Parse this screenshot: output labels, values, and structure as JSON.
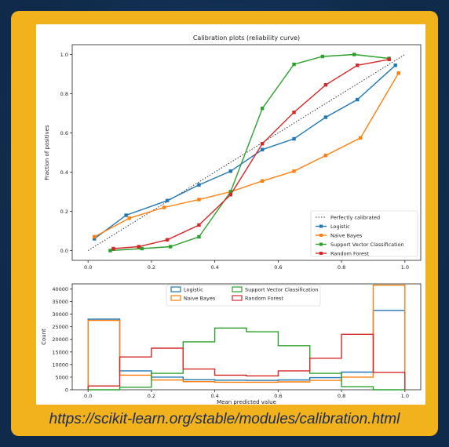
{
  "caption": "https://scikit-learn.org/stable/modules/calibration.html",
  "chart_data": [
    {
      "type": "line",
      "title": "Calibration plots  (reliability curve)",
      "xlabel": "",
      "ylabel": "Fraction of positives",
      "xlim": [
        -0.05,
        1.05
      ],
      "ylim": [
        -0.05,
        1.05
      ],
      "xticks": [
        "0.0",
        "0.2",
        "0.4",
        "0.6",
        "0.8",
        "1.0"
      ],
      "yticks": [
        "0.0",
        "0.2",
        "0.4",
        "0.6",
        "0.8",
        "1.0"
      ],
      "legend_position": "lower-right",
      "reference": {
        "name": "Perfectly calibrated",
        "x": [
          0,
          1
        ],
        "y": [
          0,
          1
        ],
        "color": "#333333"
      },
      "series": [
        {
          "name": "Logistic",
          "color": "#1f77b4",
          "x": [
            0.02,
            0.12,
            0.25,
            0.35,
            0.45,
            0.55,
            0.65,
            0.75,
            0.85,
            0.97
          ],
          "y": [
            0.06,
            0.18,
            0.255,
            0.335,
            0.405,
            0.515,
            0.57,
            0.68,
            0.77,
            0.945
          ]
        },
        {
          "name": "Naive Bayes",
          "color": "#ff7f0e",
          "x": [
            0.02,
            0.13,
            0.24,
            0.35,
            0.45,
            0.55,
            0.65,
            0.75,
            0.86,
            0.98
          ],
          "y": [
            0.07,
            0.165,
            0.22,
            0.26,
            0.3,
            0.355,
            0.405,
            0.485,
            0.575,
            0.905
          ]
        },
        {
          "name": "Support Vector Classification",
          "color": "#2ca02c",
          "x": [
            0.07,
            0.17,
            0.26,
            0.35,
            0.45,
            0.55,
            0.65,
            0.74,
            0.84,
            0.95
          ],
          "y": [
            0.0,
            0.01,
            0.02,
            0.07,
            0.3,
            0.725,
            0.95,
            0.99,
            1.0,
            0.98
          ]
        },
        {
          "name": "Random Forest",
          "color": "#d62728",
          "x": [
            0.08,
            0.16,
            0.25,
            0.35,
            0.45,
            0.55,
            0.65,
            0.75,
            0.85,
            0.95
          ],
          "y": [
            0.01,
            0.02,
            0.055,
            0.13,
            0.285,
            0.545,
            0.705,
            0.845,
            0.945,
            0.975
          ]
        }
      ]
    },
    {
      "type": "histogram",
      "title": "",
      "xlabel": "Mean predicted value",
      "ylabel": "Count",
      "xlim": [
        -0.05,
        1.05
      ],
      "ylim": [
        0,
        42000
      ],
      "xticks": [
        "0.0",
        "0.2",
        "0.4",
        "0.6",
        "0.8",
        "1.0"
      ],
      "yticks": [
        "0",
        "5000",
        "10000",
        "15000",
        "20000",
        "25000",
        "30000",
        "35000",
        "40000"
      ],
      "legend_position": "upper-center",
      "bin_edges": [
        0.0,
        0.1,
        0.2,
        0.3,
        0.4,
        0.5,
        0.6,
        0.7,
        0.8,
        0.9,
        1.0
      ],
      "series": [
        {
          "name": "Logistic",
          "color": "#1f77b4",
          "counts": [
            28000,
            7500,
            5000,
            4000,
            3800,
            3700,
            3900,
            4800,
            7000,
            31500
          ]
        },
        {
          "name": "Naive Bayes",
          "color": "#ff7f0e",
          "counts": [
            27500,
            5800,
            3900,
            3200,
            3000,
            3000,
            3100,
            3700,
            5000,
            41500
          ]
        },
        {
          "name": "Support Vector Classification",
          "color": "#2ca02c",
          "counts": [
            0,
            1000,
            6500,
            19000,
            24500,
            23000,
            17500,
            6500,
            1200,
            0
          ]
        },
        {
          "name": "Random Forest",
          "color": "#d62728",
          "counts": [
            1500,
            13000,
            16500,
            8200,
            5800,
            5500,
            7500,
            12500,
            22000,
            6900
          ]
        }
      ]
    }
  ]
}
